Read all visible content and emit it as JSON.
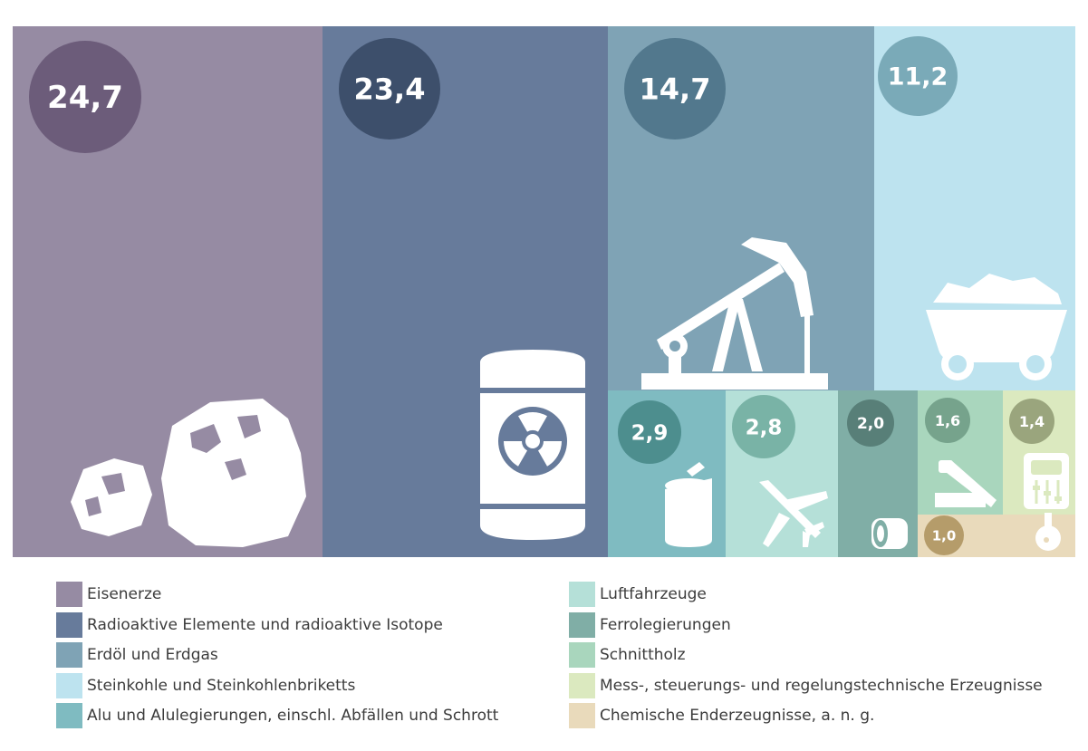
{
  "chart_data": {
    "type": "treemap",
    "series": [
      {
        "name": "Eisenerze",
        "value": 24.7,
        "label": "24,7",
        "color": "#968ba3",
        "bubble": "#6c5c7a",
        "icon": "ore-rocks-icon"
      },
      {
        "name": "Radioaktive Elemente und radioaktive Isotope",
        "value": 23.4,
        "label": "23,4",
        "color": "#677b9b",
        "bubble": "#3d4f6b",
        "icon": "radioactive-barrel-icon"
      },
      {
        "name": "Erdöl und Erdgas",
        "value": 14.7,
        "label": "14,7",
        "color": "#7fa3b5",
        "bubble": "#52788d",
        "icon": "oil-pump-icon"
      },
      {
        "name": "Steinkohle und Steinkohlenbriketts",
        "value": 11.2,
        "label": "11,2",
        "color": "#bde3ef",
        "bubble": "#7aaab8",
        "icon": "coal-cart-icon"
      },
      {
        "name": "Alu und Alulegierungen, einschl. Abfällen und Schrott",
        "value": 2.9,
        "label": "2,9",
        "color": "#7fbbc1",
        "bubble": "#4d8e8e",
        "icon": "can-icon"
      },
      {
        "name": "Luftfahrzeuge",
        "value": 2.8,
        "label": "2,8",
        "color": "#b5e0d8",
        "bubble": "#79b3a6",
        "icon": "airplane-icon"
      },
      {
        "name": "Ferrolegierungen",
        "value": 2.0,
        "label": "2,0",
        "color": "#80aea6",
        "bubble": "#587f78",
        "icon": "tape-roll-icon"
      },
      {
        "name": "Schnittholz",
        "value": 1.6,
        "label": "1,6",
        "color": "#a9d6bd",
        "bubble": "#76a38c",
        "icon": "saw-icon"
      },
      {
        "name": "Mess-, steuerungs- und regelungstechnische Erzeugnisse",
        "value": 1.4,
        "label": "1,4",
        "color": "#dbe9bf",
        "bubble": "#9aa57d",
        "icon": "gauge-icon"
      },
      {
        "name": "Chemische Enderzeugnisse, a. n. g.",
        "value": 1.0,
        "label": "1,0",
        "color": "#e9dabb",
        "bubble": "#b59c6a",
        "icon": "flask-icon"
      }
    ],
    "legend_position": "bottom"
  }
}
